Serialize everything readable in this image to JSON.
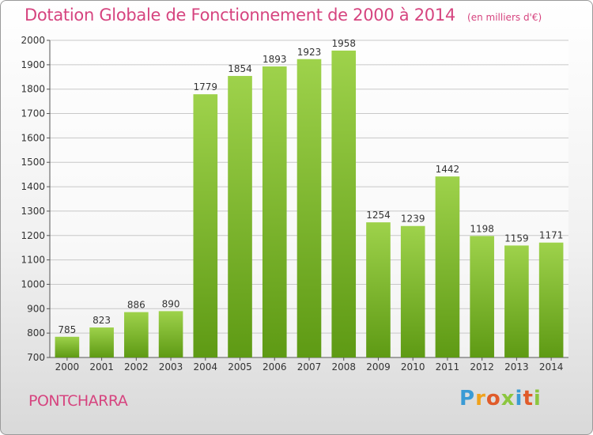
{
  "header": {
    "title": "Dotation Globale de Fonctionnement de 2000 à 2014",
    "unit_note": "(en milliers d'€)"
  },
  "footer": {
    "commune": "PONTCHARRA",
    "logo_letters": [
      "P",
      "r",
      "o",
      "x",
      "i",
      "t",
      "i"
    ]
  },
  "colors": {
    "accent": "#d6447f",
    "bar_top": "#9ed24b",
    "bar_bottom": "#5e9a14",
    "logo": [
      "#3a9bd5",
      "#f0a21c",
      "#e05b2a",
      "#8cc63f",
      "#3a9bd5",
      "#e05b2a",
      "#8cc63f"
    ]
  },
  "chart_data": {
    "type": "bar",
    "categories": [
      "2000",
      "2001",
      "2002",
      "2003",
      "2004",
      "2005",
      "2006",
      "2007",
      "2008",
      "2009",
      "2010",
      "2011",
      "2012",
      "2013",
      "2014"
    ],
    "values": [
      785,
      823,
      886,
      890,
      1779,
      1854,
      1893,
      1923,
      1958,
      1254,
      1239,
      1442,
      1198,
      1159,
      1171
    ],
    "ylim": [
      700,
      2000
    ],
    "yticks": [
      700,
      800,
      900,
      1000,
      1100,
      1200,
      1300,
      1400,
      1500,
      1600,
      1700,
      1800,
      1900,
      2000
    ],
    "grid": true
  }
}
